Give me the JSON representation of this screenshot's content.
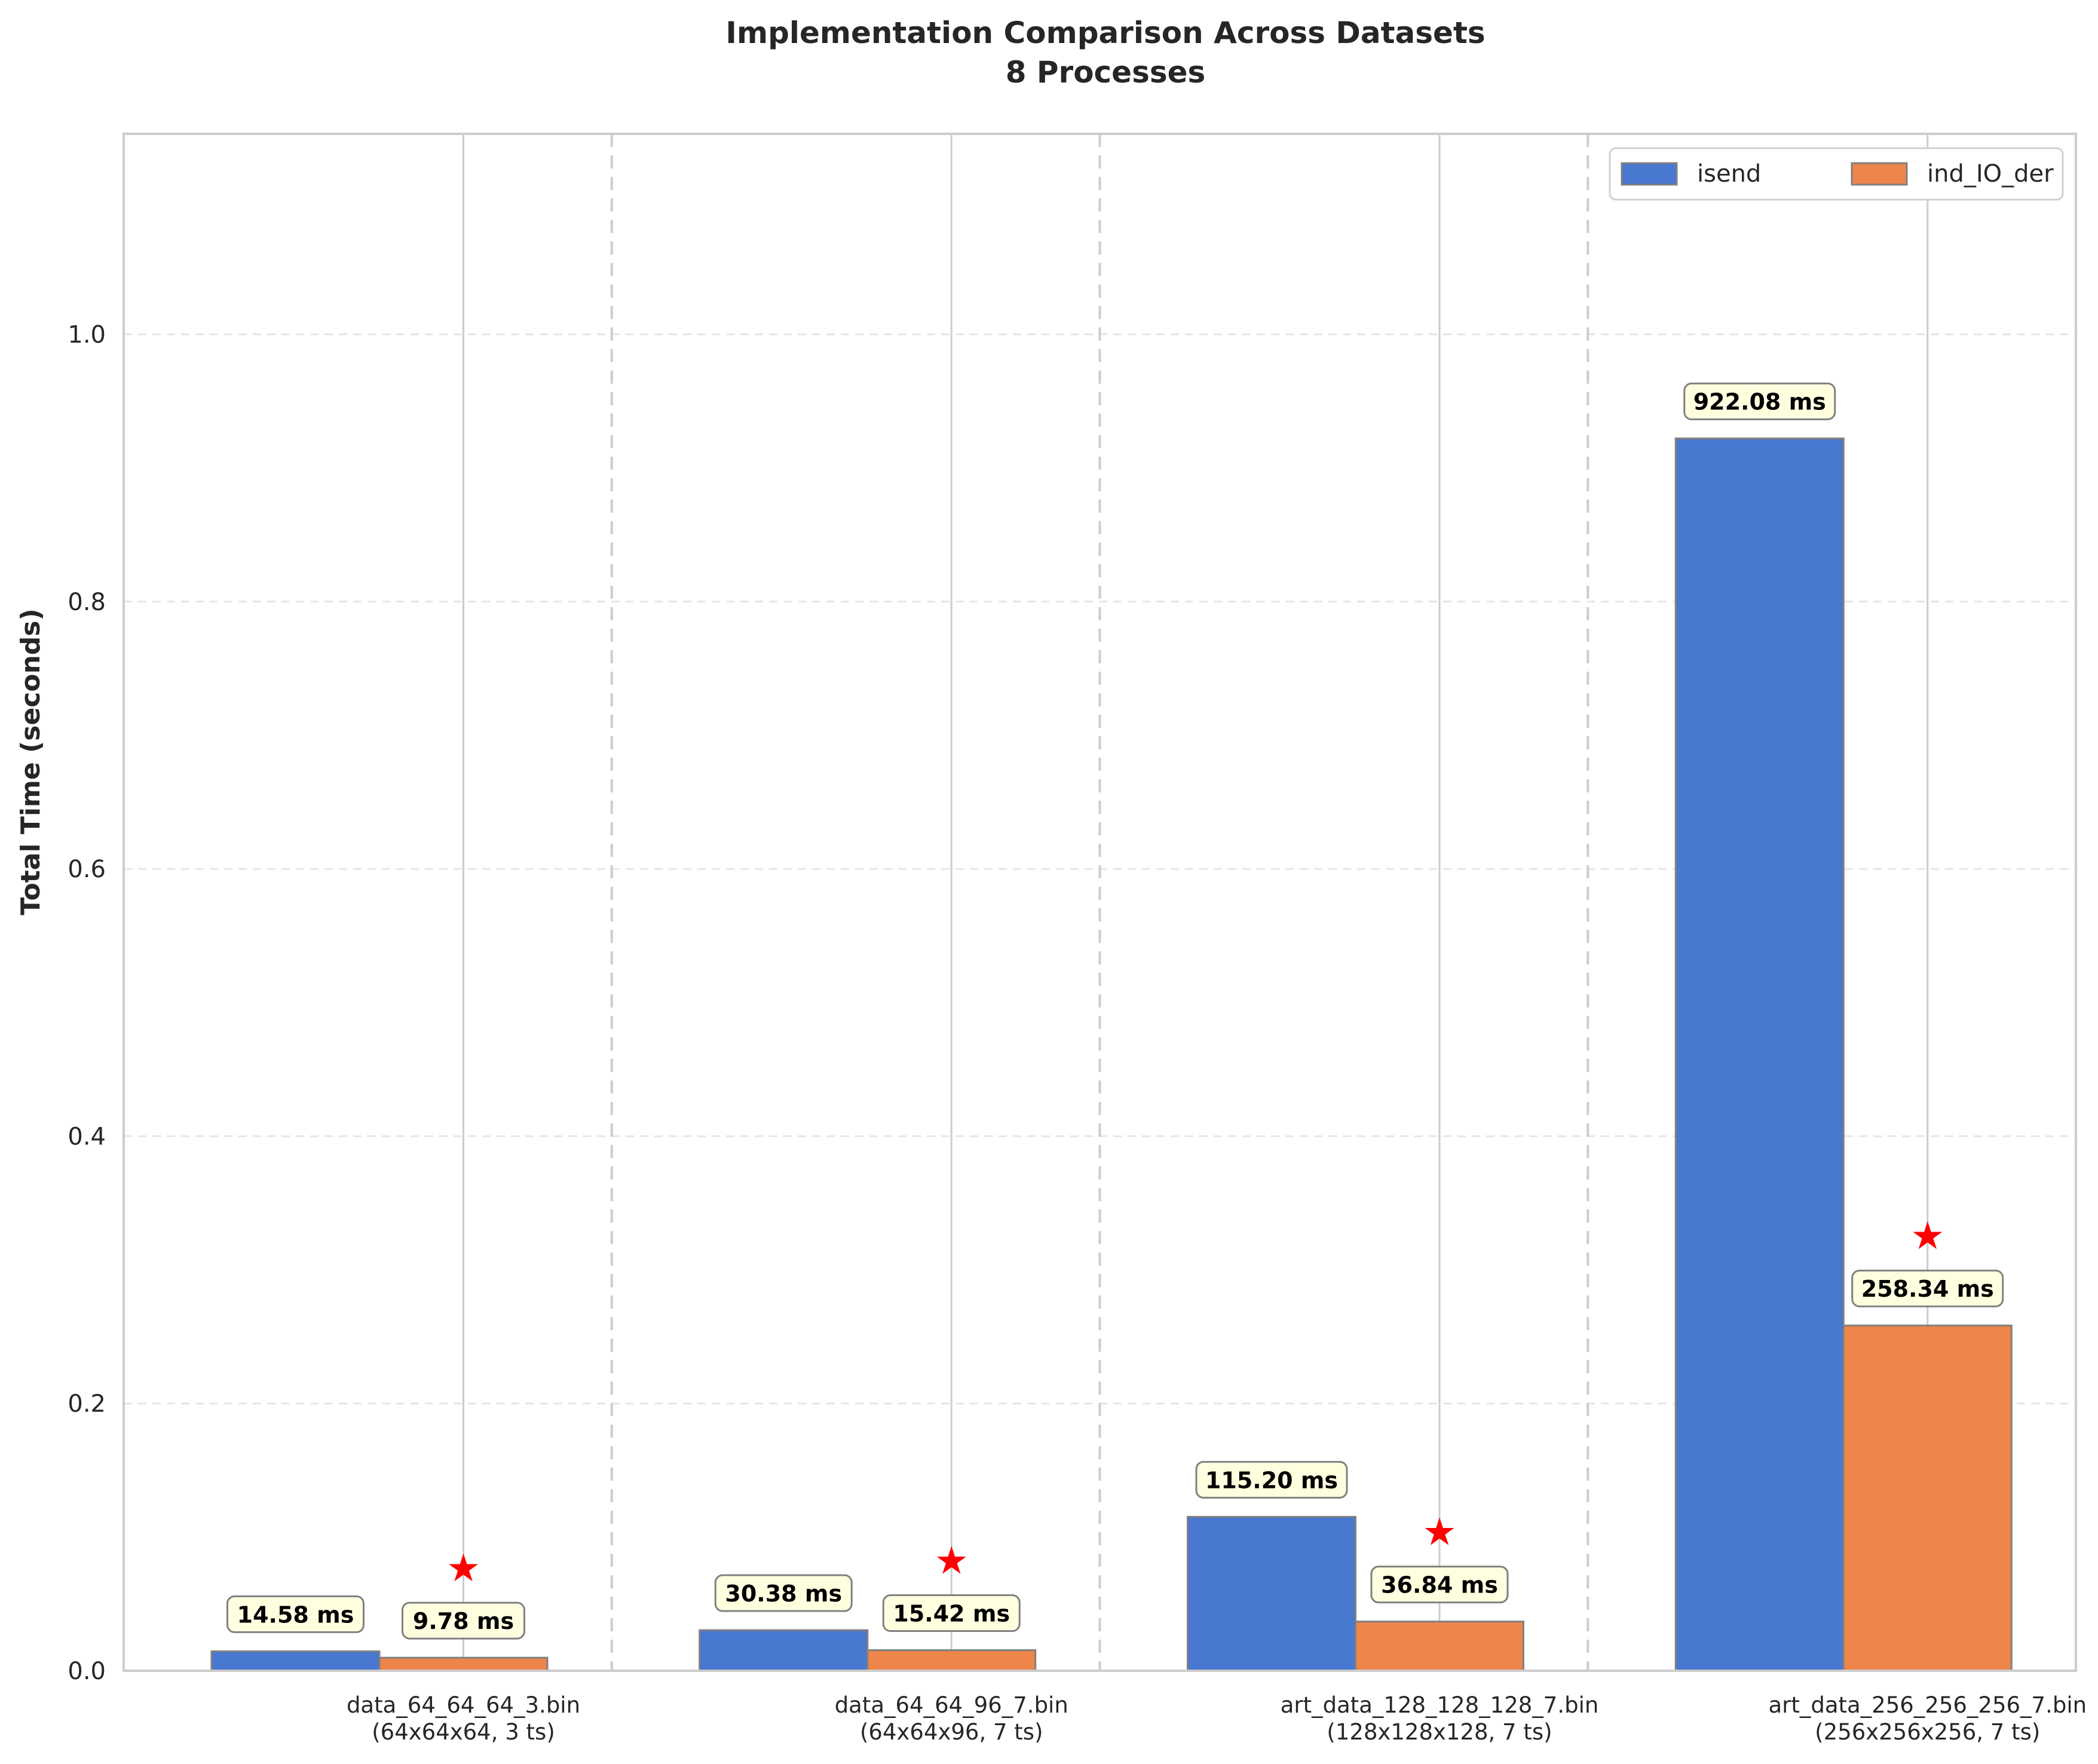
{
  "chart_data": {
    "type": "bar",
    "title": "Implementation Comparison Across Datasets",
    "subtitle": "8 Processes",
    "ylabel": "Total Time (seconds)",
    "xlabel": "",
    "ylim": [
      0,
      1.15
    ],
    "yticks": [
      0.0,
      0.2,
      0.4,
      0.6,
      0.8,
      1.0
    ],
    "ytick_labels": [
      "0.0",
      "0.2",
      "0.4",
      "0.6",
      "0.8",
      "1.0"
    ],
    "grid": true,
    "legend_position": "top-right",
    "categories": [
      "data_64_64_64_3.bin\n(64x64x64, 3 ts)",
      "data_64_64_96_7.bin\n(64x64x96, 7 ts)",
      "art_data_128_128_128_7.bin\n(128x128x128, 7 ts)",
      "art_data_256_256_256_7.bin\n(256x256x256, 7 ts)"
    ],
    "series": [
      {
        "name": "isend",
        "color": "#4878cf",
        "values": [
          0.01458,
          0.03038,
          0.1152,
          0.92208
        ],
        "labels": [
          "14.58 ms",
          "30.38 ms",
          "115.20 ms",
          "922.08 ms"
        ]
      },
      {
        "name": "ind_IO_der",
        "color": "#ee854a",
        "values": [
          0.00978,
          0.01542,
          0.03684,
          0.25834
        ],
        "labels": [
          "9.78 ms",
          "15.42 ms",
          "36.84 ms",
          "258.34 ms"
        ]
      }
    ],
    "best_marker": {
      "series": "ind_IO_der",
      "symbol": "★",
      "color": "#ff0000",
      "categories": [
        0,
        1,
        2,
        3
      ]
    },
    "label_box_color": "#ffffe0"
  }
}
